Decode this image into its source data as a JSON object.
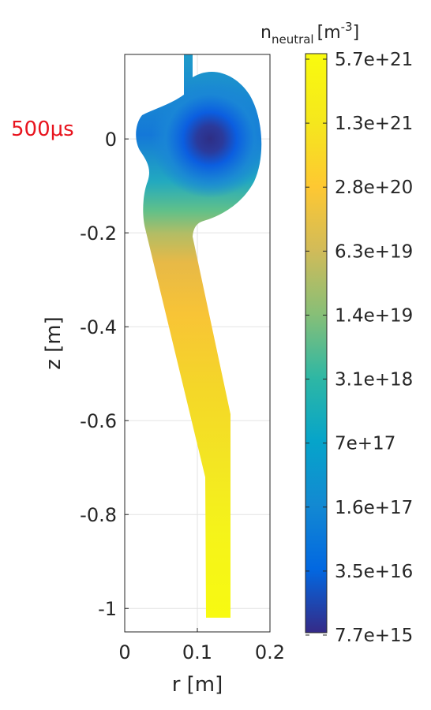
{
  "chart_data": {
    "type": "heatmap",
    "annotation": "500μs",
    "xlabel": "r [m]",
    "ylabel": "z [m]",
    "xlim": [
      0,
      0.2
    ],
    "ylim": [
      -1.05,
      0.18
    ],
    "x_ticks": [
      0,
      0.1,
      0.2
    ],
    "x_tick_labels": [
      "0",
      "0.1",
      "0.2"
    ],
    "y_ticks": [
      0,
      -0.2,
      -0.4,
      -0.6,
      -0.8,
      -1
    ],
    "y_tick_labels": [
      "0",
      "-0.2",
      "-0.4",
      "-0.6",
      "-0.8",
      "-1"
    ],
    "grid": true,
    "colorbar": {
      "title_main": "n",
      "title_sub": "neutral",
      "title_unit": "[m",
      "title_exp": "-3",
      "title_close": "]",
      "scale": "log",
      "tick_labels": [
        "5.7e+21",
        "1.3e+21",
        "2.8e+20",
        "6.3e+19",
        "1.4e+19",
        "3.1e+18",
        "7e+17",
        "1.6e+17",
        "3.5e+16",
        "7.7e+15"
      ],
      "max": 5.7e+21,
      "min": 7700000000000000.0,
      "colormap": "parula",
      "colormap_colors": [
        "#352a87",
        "#0268e1",
        "#1389d2",
        "#06a4ca",
        "#2eb7a4",
        "#87bf77",
        "#d1bb59",
        "#fec832",
        "#f5e71d",
        "#f9fb0e"
      ]
    },
    "field": {
      "description_minimum_r": 0.12,
      "minimum_z": 0.0,
      "minimum_value": 7700000000000000.0,
      "maximum_value": 5.7e+21
    }
  }
}
